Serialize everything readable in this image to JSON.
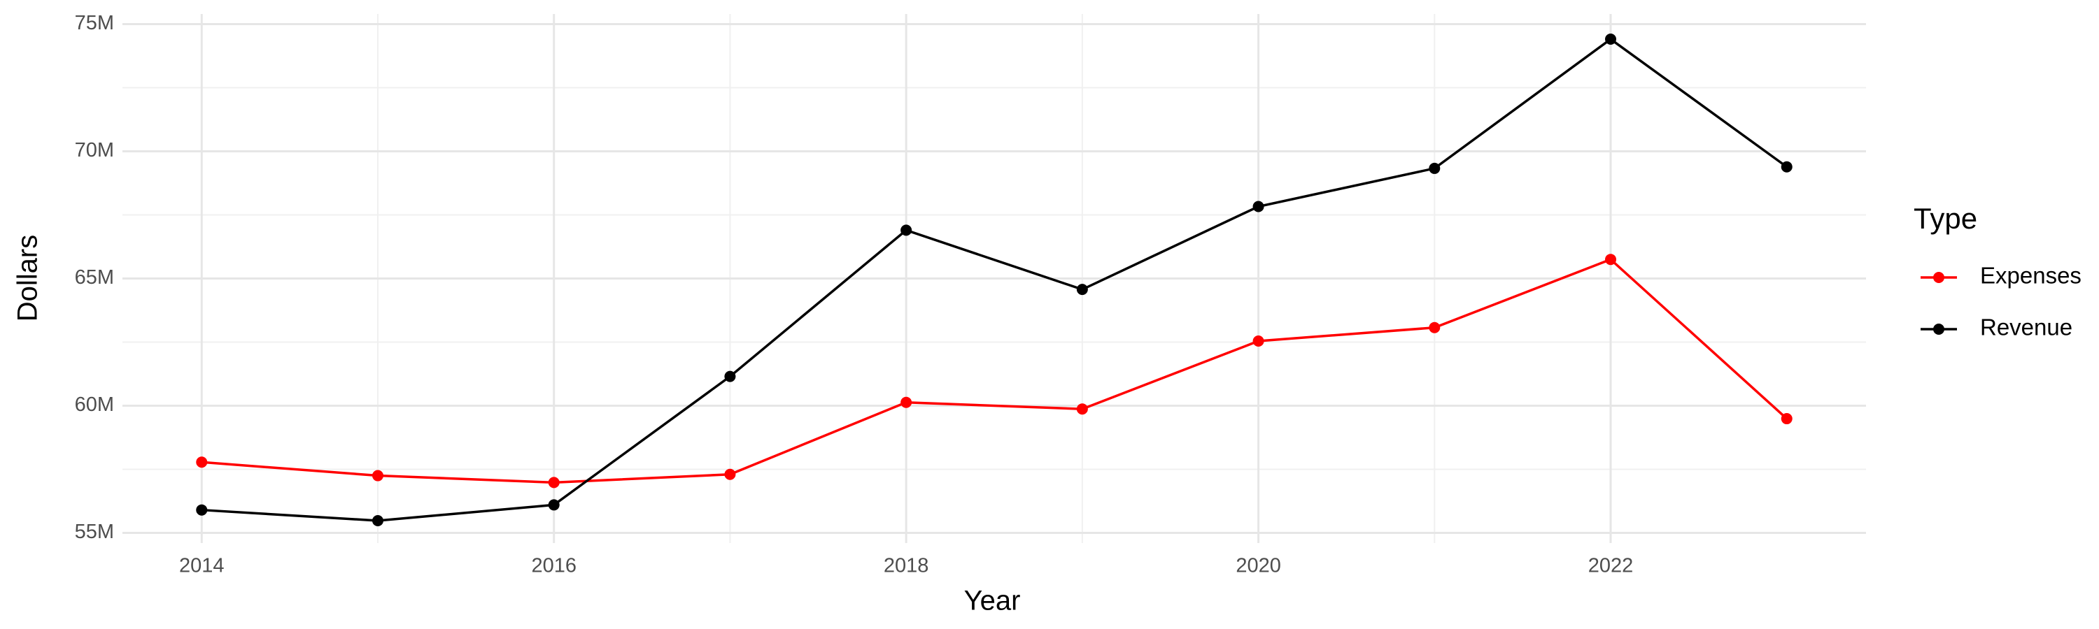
{
  "chart_data": {
    "type": "line",
    "x_label": "Year",
    "y_label": "Dollars",
    "x": [
      2014,
      2015,
      2016,
      2017,
      2018,
      2019,
      2020,
      2021,
      2022,
      2023
    ],
    "series": [
      {
        "name": "Expenses",
        "color": "#ff0000",
        "values": [
          57780000,
          57250000,
          56980000,
          57300000,
          60130000,
          59870000,
          62540000,
          63070000,
          65750000,
          59490000
        ]
      },
      {
        "name": "Revenue",
        "color": "#000000",
        "values": [
          55900000,
          55480000,
          56100000,
          61150000,
          66900000,
          64570000,
          67830000,
          69330000,
          74410000,
          69390000
        ]
      }
    ],
    "xlim": [
      2013.55,
      2023.45
    ],
    "xticks": [
      2014,
      2016,
      2018,
      2020,
      2022
    ],
    "ylim": [
      54600000,
      75400000
    ],
    "yticks": [
      {
        "value": 55000000,
        "label": "55M"
      },
      {
        "value": 60000000,
        "label": "60M"
      },
      {
        "value": 65000000,
        "label": "65M"
      },
      {
        "value": 70000000,
        "label": "70M"
      },
      {
        "value": 75000000,
        "label": "75M"
      }
    ],
    "grid": true,
    "legend_title": "Type",
    "legend_position": "right"
  }
}
